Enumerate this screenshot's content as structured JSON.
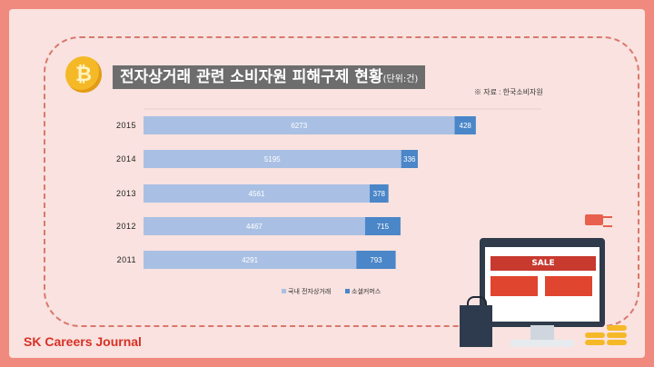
{
  "title": "전자상거래 관련 소비자원 피해구제 현황",
  "title_unit": "(단위:건)",
  "source": "※ 자료 : 한국소비자원",
  "logo": "SK Careers Journal",
  "illustration": {
    "sale": "SALE"
  },
  "colors": {
    "domestic": "#a9c0e4",
    "social": "#4a86c8",
    "background": "#f9e2df",
    "frame": "#f08a7e"
  },
  "chart_data": {
    "type": "bar",
    "orientation": "horizontal",
    "stacked": true,
    "categories": [
      "2015",
      "2014",
      "2013",
      "2012",
      "2011"
    ],
    "series": [
      {
        "name": "국내 전자상거래",
        "values": [
          6273,
          5195,
          4561,
          4467,
          4291
        ]
      },
      {
        "name": "소셜커머스",
        "values": [
          428,
          336,
          378,
          715,
          793
        ]
      }
    ],
    "legend_position": "bottom",
    "grid": false
  }
}
